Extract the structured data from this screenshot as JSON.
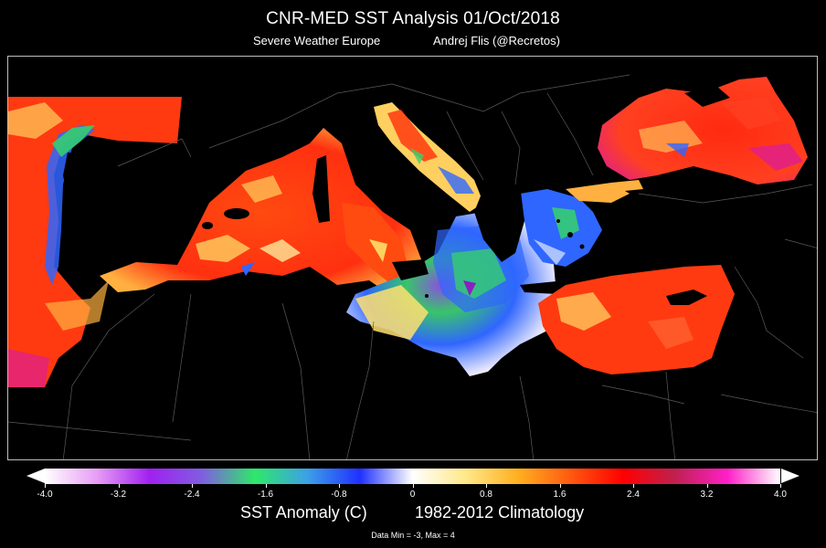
{
  "header": {
    "title": "CNR-MED SST Analysis 01/Oct/2018",
    "source": "Severe Weather Europe",
    "author": "Andrej Flis (@Recretos)"
  },
  "colorbar": {
    "ticks": [
      "-4.0",
      "-3.2",
      "-2.4",
      "-1.6",
      "-0.8",
      "0",
      "0.8",
      "1.6",
      "2.4",
      "3.2",
      "4.0"
    ],
    "label": "SST Anomaly (C)",
    "climatology": "1982-2012 Climatology",
    "colors": [
      "#ffffff",
      "#e79cf5",
      "#a020f0",
      "#7f5fe0",
      "#2ee86a",
      "#3da0e8",
      "#2030ff",
      "#ffffff",
      "#ffe98a",
      "#ffb020",
      "#ff5a10",
      "#ff0000",
      "#c02050",
      "#ff20c8",
      "#ffffff"
    ]
  },
  "footer": {
    "data_minmax": "Data Min = -3, Max = 4"
  },
  "map": {
    "region": "Mediterranean Sea",
    "colors": {
      "warm": "#ff3a10",
      "warm_light": "#ffd060",
      "hot": "#e0208a",
      "cool": "#2f66ff",
      "cold": "#35d36a",
      "land": "#000000",
      "border": "#5a5a5a"
    }
  }
}
